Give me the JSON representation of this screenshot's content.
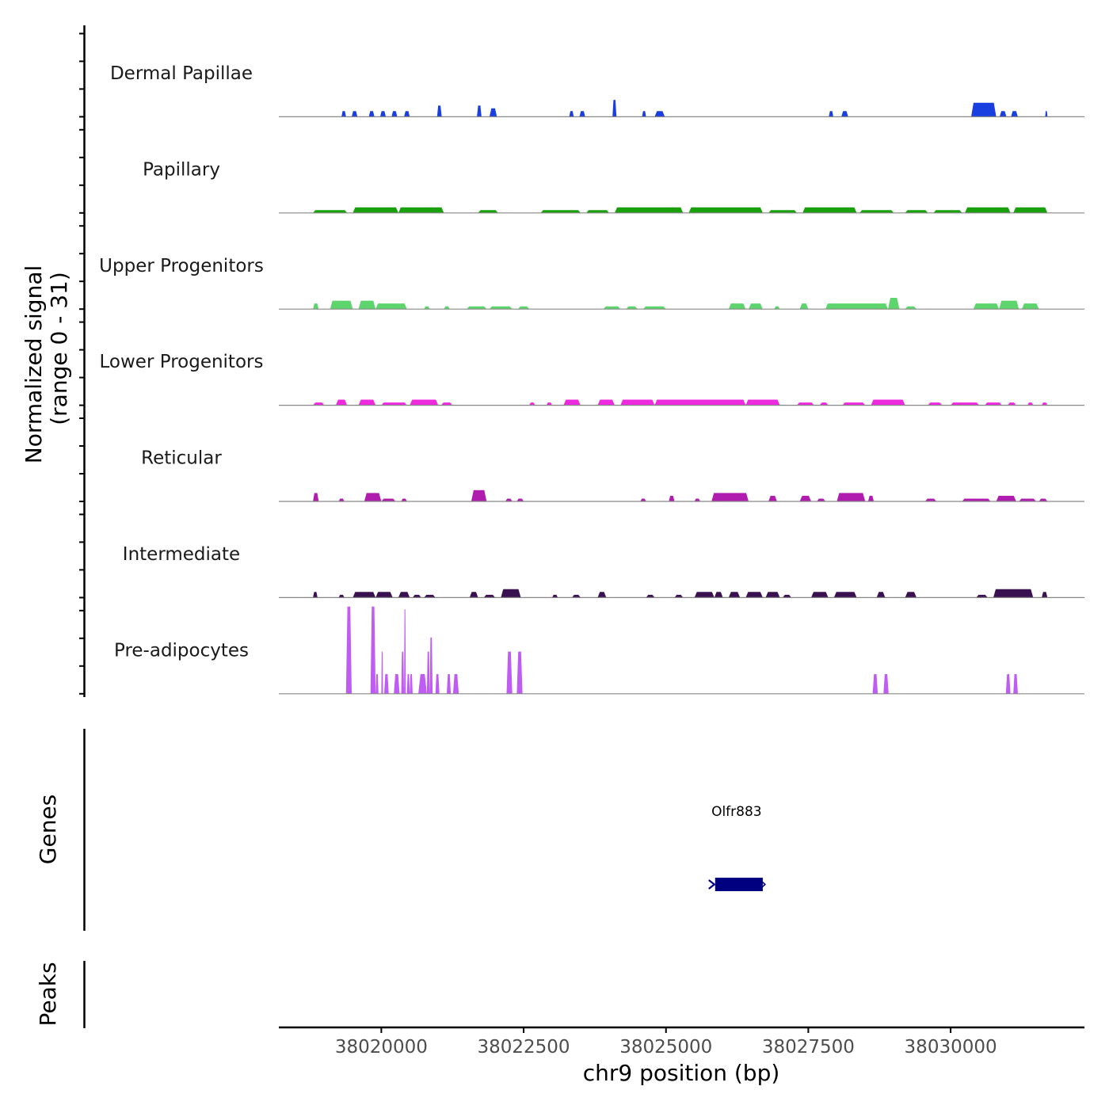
{
  "chart_data": {
    "type": "area",
    "title": "",
    "ylabel": "Normalized signal",
    "ylabel_range": "(range 0 - 31)",
    "xlabel": "chr9 position (bp)",
    "xlim": [
      38018200,
      38032350
    ],
    "ylim": [
      0,
      31
    ],
    "x_ticks": [
      {
        "value": 38020000,
        "label": "38020000"
      },
      {
        "value": 38022500,
        "label": "38022500"
      },
      {
        "value": 38025000,
        "label": "38025000"
      },
      {
        "value": 38027500,
        "label": "38027500"
      },
      {
        "value": 38030000,
        "label": "38030000"
      }
    ],
    "series": [
      {
        "name": "Dermal Papillae",
        "color": "#1a3fe0",
        "segments": [
          [
            38019300,
            38019380,
            2
          ],
          [
            38019480,
            38019580,
            2
          ],
          [
            38019780,
            38019880,
            2
          ],
          [
            38019980,
            38020080,
            2
          ],
          [
            38020180,
            38020280,
            2
          ],
          [
            38020400,
            38020500,
            2
          ],
          [
            38020980,
            38021060,
            4
          ],
          [
            38021680,
            38021760,
            4
          ],
          [
            38021900,
            38022030,
            3
          ],
          [
            38023300,
            38023380,
            2
          ],
          [
            38023480,
            38023580,
            2
          ],
          [
            38024060,
            38024130,
            6
          ],
          [
            38024580,
            38024650,
            2
          ],
          [
            38024800,
            38024980,
            2
          ],
          [
            38027860,
            38027940,
            2
          ],
          [
            38028080,
            38028200,
            2
          ],
          [
            38030360,
            38030800,
            5
          ],
          [
            38030860,
            38030980,
            2
          ],
          [
            38031060,
            38031180,
            2
          ],
          [
            38031660,
            38031700,
            2
          ]
        ]
      },
      {
        "name": "Papillary",
        "color": "#1aa00d",
        "segments": [
          [
            38018800,
            38019400,
            1
          ],
          [
            38019500,
            38020300,
            2
          ],
          [
            38020300,
            38021100,
            2
          ],
          [
            38021700,
            38022050,
            1
          ],
          [
            38022800,
            38023500,
            1
          ],
          [
            38023600,
            38024000,
            1
          ],
          [
            38024100,
            38025300,
            2
          ],
          [
            38025400,
            38026700,
            2
          ],
          [
            38026800,
            38027300,
            1
          ],
          [
            38027400,
            38028350,
            2
          ],
          [
            38028400,
            38029000,
            1
          ],
          [
            38029200,
            38029600,
            1
          ],
          [
            38029700,
            38030200,
            1
          ],
          [
            38030250,
            38031050,
            2
          ],
          [
            38031100,
            38031700,
            2
          ]
        ]
      },
      {
        "name": "Upper Progenitors",
        "color": "#5dd56c",
        "segments": [
          [
            38018800,
            38018900,
            2
          ],
          [
            38019100,
            38019500,
            3
          ],
          [
            38019600,
            38019900,
            3
          ],
          [
            38019900,
            38020450,
            2
          ],
          [
            38020750,
            38020850,
            1
          ],
          [
            38021100,
            38021200,
            1
          ],
          [
            38021500,
            38021850,
            1
          ],
          [
            38021900,
            38022300,
            1
          ],
          [
            38022400,
            38022600,
            1
          ],
          [
            38023900,
            38024200,
            1
          ],
          [
            38024300,
            38024500,
            1
          ],
          [
            38024600,
            38025000,
            1
          ],
          [
            38026100,
            38026400,
            2
          ],
          [
            38026450,
            38026700,
            2
          ],
          [
            38026900,
            38027000,
            1
          ],
          [
            38027350,
            38027500,
            2
          ],
          [
            38027800,
            38028900,
            2
          ],
          [
            38028900,
            38029100,
            4
          ],
          [
            38029200,
            38029400,
            1
          ],
          [
            38030400,
            38030850,
            2
          ],
          [
            38030850,
            38031200,
            3
          ],
          [
            38031250,
            38031550,
            2
          ]
        ]
      },
      {
        "name": "Lower Progenitors",
        "color": "#ee2ade",
        "segments": [
          [
            38018800,
            38019000,
            1
          ],
          [
            38019200,
            38019400,
            2
          ],
          [
            38019600,
            38019900,
            2
          ],
          [
            38020000,
            38020450,
            1
          ],
          [
            38020500,
            38021000,
            2
          ],
          [
            38021050,
            38021250,
            1
          ],
          [
            38022600,
            38022700,
            1
          ],
          [
            38022900,
            38023000,
            1
          ],
          [
            38023200,
            38023500,
            2
          ],
          [
            38023800,
            38024100,
            2
          ],
          [
            38024200,
            38024800,
            2
          ],
          [
            38024800,
            38026400,
            2
          ],
          [
            38026400,
            38027000,
            2
          ],
          [
            38027300,
            38027600,
            1
          ],
          [
            38027700,
            38027850,
            1
          ],
          [
            38028100,
            38028500,
            1
          ],
          [
            38028600,
            38029200,
            2
          ],
          [
            38029600,
            38029850,
            1
          ],
          [
            38030000,
            38030500,
            1
          ],
          [
            38030600,
            38030900,
            1
          ],
          [
            38031000,
            38031150,
            1
          ],
          [
            38031350,
            38031450,
            1
          ],
          [
            38031600,
            38031700,
            1
          ]
        ]
      },
      {
        "name": "Reticular",
        "color": "#b01cae",
        "segments": [
          [
            38018800,
            38018900,
            3
          ],
          [
            38019250,
            38019350,
            1
          ],
          [
            38019700,
            38020000,
            3
          ],
          [
            38020000,
            38020250,
            1
          ],
          [
            38020350,
            38020450,
            1
          ],
          [
            38021580,
            38021850,
            4
          ],
          [
            38022180,
            38022300,
            1
          ],
          [
            38022380,
            38022500,
            1
          ],
          [
            38024550,
            38024650,
            1
          ],
          [
            38025050,
            38025150,
            2
          ],
          [
            38025500,
            38025600,
            1
          ],
          [
            38025800,
            38026450,
            3
          ],
          [
            38026800,
            38026950,
            2
          ],
          [
            38027350,
            38027550,
            2
          ],
          [
            38027650,
            38027800,
            1
          ],
          [
            38028000,
            38028500,
            3
          ],
          [
            38028550,
            38028650,
            2
          ],
          [
            38029550,
            38029750,
            1
          ],
          [
            38030200,
            38030700,
            1
          ],
          [
            38030800,
            38031150,
            2
          ],
          [
            38031200,
            38031500,
            1
          ],
          [
            38031550,
            38031700,
            1
          ]
        ]
      },
      {
        "name": "Intermediate",
        "color": "#3a1150",
        "segments": [
          [
            38018800,
            38018880,
            2
          ],
          [
            38019250,
            38019350,
            1
          ],
          [
            38019500,
            38019900,
            2
          ],
          [
            38019900,
            38020200,
            2
          ],
          [
            38020300,
            38020500,
            2
          ],
          [
            38020550,
            38020700,
            1
          ],
          [
            38020750,
            38020950,
            1
          ],
          [
            38021550,
            38021700,
            2
          ],
          [
            38021800,
            38022000,
            1
          ],
          [
            38022100,
            38022450,
            3
          ],
          [
            38023000,
            38023100,
            1
          ],
          [
            38023350,
            38023500,
            1
          ],
          [
            38023800,
            38023950,
            2
          ],
          [
            38024650,
            38024800,
            1
          ],
          [
            38025150,
            38025300,
            1
          ],
          [
            38025500,
            38025850,
            2
          ],
          [
            38025850,
            38026000,
            2
          ],
          [
            38026100,
            38026300,
            2
          ],
          [
            38026400,
            38026700,
            2
          ],
          [
            38026750,
            38027000,
            2
          ],
          [
            38027050,
            38027200,
            1
          ],
          [
            38027550,
            38027850,
            2
          ],
          [
            38027950,
            38028350,
            2
          ],
          [
            38028700,
            38028850,
            2
          ],
          [
            38029200,
            38029400,
            2
          ],
          [
            38030450,
            38030650,
            1
          ],
          [
            38030750,
            38031450,
            3
          ],
          [
            38031600,
            38031700,
            2
          ]
        ]
      },
      {
        "name": "Pre-adipocytes",
        "color": "#bf5cf3",
        "segments": [
          [
            38019380,
            38019480,
            31
          ],
          [
            38019810,
            38019900,
            31
          ],
          [
            38019900,
            38019950,
            7
          ],
          [
            38020000,
            38020030,
            15
          ],
          [
            38020050,
            38020130,
            7
          ],
          [
            38020220,
            38020320,
            7
          ],
          [
            38020350,
            38020400,
            15
          ],
          [
            38020400,
            38020430,
            30
          ],
          [
            38020450,
            38020500,
            7
          ],
          [
            38020500,
            38020550,
            7
          ],
          [
            38020650,
            38020800,
            7
          ],
          [
            38020800,
            38020850,
            15
          ],
          [
            38020850,
            38020900,
            20
          ],
          [
            38020950,
            38021020,
            7
          ],
          [
            38021150,
            38021220,
            7
          ],
          [
            38021260,
            38021360,
            7
          ],
          [
            38022200,
            38022300,
            15
          ],
          [
            38022380,
            38022480,
            15
          ],
          [
            38028630,
            38028720,
            7
          ],
          [
            38028820,
            38028910,
            7
          ],
          [
            38030970,
            38031050,
            7
          ],
          [
            38031100,
            38031180,
            7
          ]
        ]
      }
    ]
  },
  "genes_track": {
    "label": "Genes",
    "genes": [
      {
        "name": "Olfr883",
        "start": 38025780,
        "end": 38026700,
        "strand": "-"
      }
    ]
  },
  "peaks_track": {
    "label": "Peaks"
  }
}
